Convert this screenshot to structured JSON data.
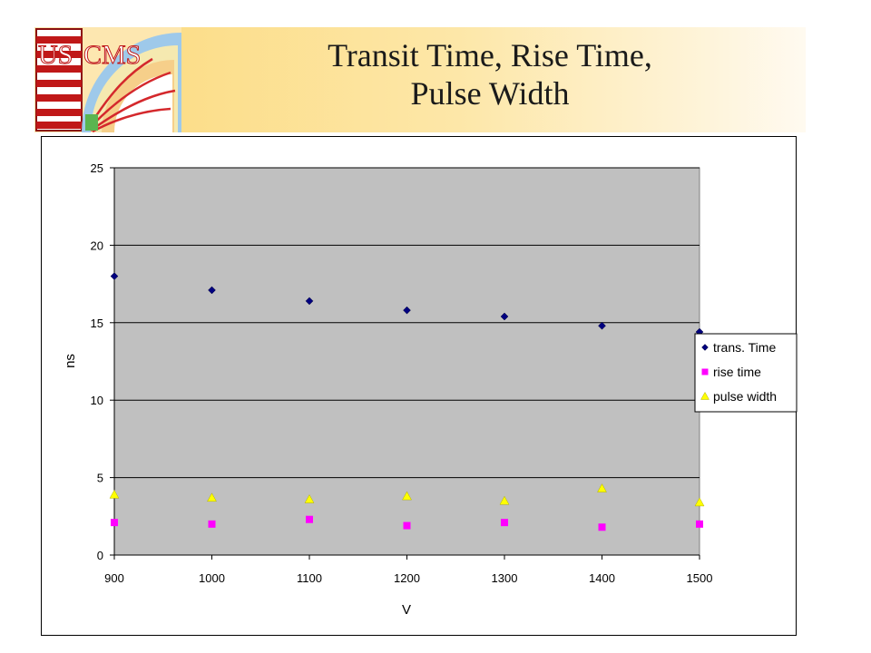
{
  "slide": {
    "title_line1": "Transit Time, Rise Time,",
    "title_line2": "Pulse Width",
    "logo_text_us": "US",
    "logo_text_cms": "CMS"
  },
  "colors": {
    "header_band": "#fcd97a",
    "plot_area": "#c0c0c0",
    "series_trans_time": "#000080",
    "series_rise_time": "#ff00ff",
    "series_pulse_width": "#ffff00"
  },
  "chart_data": {
    "type": "scatter",
    "title": "",
    "xlabel": "V",
    "ylabel": "ns",
    "xlim": [
      900,
      1500
    ],
    "ylim": [
      0,
      25
    ],
    "xticks": [
      "900",
      "1000",
      "1100",
      "1200",
      "1300",
      "1400",
      "1500"
    ],
    "yticks": [
      "0",
      "5",
      "10",
      "15",
      "20",
      "25"
    ],
    "grid": "horizontal major gridlines",
    "legend_position": "right",
    "series": [
      {
        "name": "trans. Time",
        "marker": "diamond",
        "color": "#000080",
        "x": [
          900,
          1000,
          1100,
          1200,
          1300,
          1400,
          1500
        ],
        "y": [
          18.0,
          17.1,
          16.4,
          15.8,
          15.4,
          14.8,
          14.4
        ]
      },
      {
        "name": "rise time",
        "marker": "square",
        "color": "#ff00ff",
        "x": [
          900,
          1000,
          1100,
          1200,
          1300,
          1400,
          1500
        ],
        "y": [
          2.1,
          2.0,
          2.3,
          1.9,
          2.1,
          1.8,
          2.0
        ]
      },
      {
        "name": "pulse width",
        "marker": "triangle",
        "color": "#ffff00",
        "x": [
          900,
          1000,
          1100,
          1200,
          1300,
          1400,
          1500
        ],
        "y": [
          3.9,
          3.7,
          3.6,
          3.8,
          3.5,
          4.3,
          3.4
        ]
      }
    ]
  }
}
